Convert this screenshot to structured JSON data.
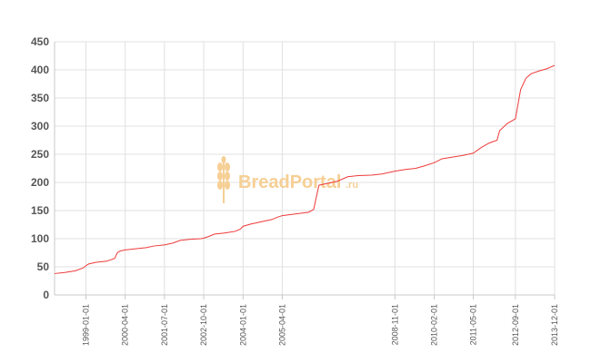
{
  "watermark": {
    "brand": "BreadPortal",
    "suffix": ".ru"
  },
  "chart_data": {
    "type": "line",
    "title": "",
    "xlabel": "",
    "ylabel": "",
    "ylim": [
      0,
      450
    ],
    "yticks": [
      0,
      50,
      100,
      150,
      200,
      250,
      300,
      350,
      400,
      450
    ],
    "xlim": [
      "1998-01-01",
      "2013-12-01"
    ],
    "xticks": [
      "1999-01-01",
      "2000-04-01",
      "2001-07-01",
      "2002-10-01",
      "2004-01-01",
      "2005-04-01",
      "2008-11-01",
      "2010-02-01",
      "2011-05-01",
      "2012-09-01",
      "2013-12-01"
    ],
    "grid": true,
    "legend": "none",
    "line_color": "#ee3a3a",
    "series": [
      {
        "values": [
          [
            "1998-01-01",
            38
          ],
          [
            "1998-05-01",
            40
          ],
          [
            "1998-09-01",
            43
          ],
          [
            "1998-12-01",
            48
          ],
          [
            "1999-01-01",
            52
          ],
          [
            "1999-02-01",
            55
          ],
          [
            "1999-05-01",
            58
          ],
          [
            "1999-09-01",
            60
          ],
          [
            "1999-12-01",
            65
          ],
          [
            "2000-01-01",
            75
          ],
          [
            "2000-02-01",
            78
          ],
          [
            "2000-04-01",
            80
          ],
          [
            "2000-08-01",
            82
          ],
          [
            "2000-12-01",
            84
          ],
          [
            "2001-03-01",
            87
          ],
          [
            "2001-07-01",
            89
          ],
          [
            "2001-10-01",
            92
          ],
          [
            "2002-01-01",
            97
          ],
          [
            "2002-05-01",
            99
          ],
          [
            "2002-09-01",
            100
          ],
          [
            "2002-10-01",
            101
          ],
          [
            "2002-12-01",
            104
          ],
          [
            "2003-02-01",
            108
          ],
          [
            "2003-06-01",
            110
          ],
          [
            "2003-10-01",
            113
          ],
          [
            "2003-12-01",
            117
          ],
          [
            "2004-01-01",
            122
          ],
          [
            "2004-04-01",
            126
          ],
          [
            "2004-08-01",
            130
          ],
          [
            "2004-12-01",
            134
          ],
          [
            "2005-02-01",
            138
          ],
          [
            "2005-04-01",
            141
          ],
          [
            "2005-09-01",
            144
          ],
          [
            "2006-02-01",
            147
          ],
          [
            "2006-04-01",
            152
          ],
          [
            "2006-06-01",
            195
          ],
          [
            "2006-09-01",
            198
          ],
          [
            "2007-01-01",
            202
          ],
          [
            "2007-05-01",
            210
          ],
          [
            "2007-09-01",
            212
          ],
          [
            "2008-02-01",
            213
          ],
          [
            "2008-06-01",
            215
          ],
          [
            "2008-11-01",
            220
          ],
          [
            "2009-03-01",
            223
          ],
          [
            "2009-07-01",
            225
          ],
          [
            "2009-10-01",
            229
          ],
          [
            "2010-02-01",
            235
          ],
          [
            "2010-05-01",
            242
          ],
          [
            "2010-09-01",
            245
          ],
          [
            "2011-01-01",
            248
          ],
          [
            "2011-05-01",
            252
          ],
          [
            "2011-08-01",
            262
          ],
          [
            "2011-11-01",
            270
          ],
          [
            "2012-02-01",
            275
          ],
          [
            "2012-03-01",
            292
          ],
          [
            "2012-06-01",
            305
          ],
          [
            "2012-09-01",
            313
          ],
          [
            "2012-11-01",
            365
          ],
          [
            "2013-01-01",
            385
          ],
          [
            "2013-03-01",
            393
          ],
          [
            "2013-06-01",
            398
          ],
          [
            "2013-09-01",
            402
          ],
          [
            "2013-12-01",
            408
          ]
        ]
      }
    ]
  }
}
